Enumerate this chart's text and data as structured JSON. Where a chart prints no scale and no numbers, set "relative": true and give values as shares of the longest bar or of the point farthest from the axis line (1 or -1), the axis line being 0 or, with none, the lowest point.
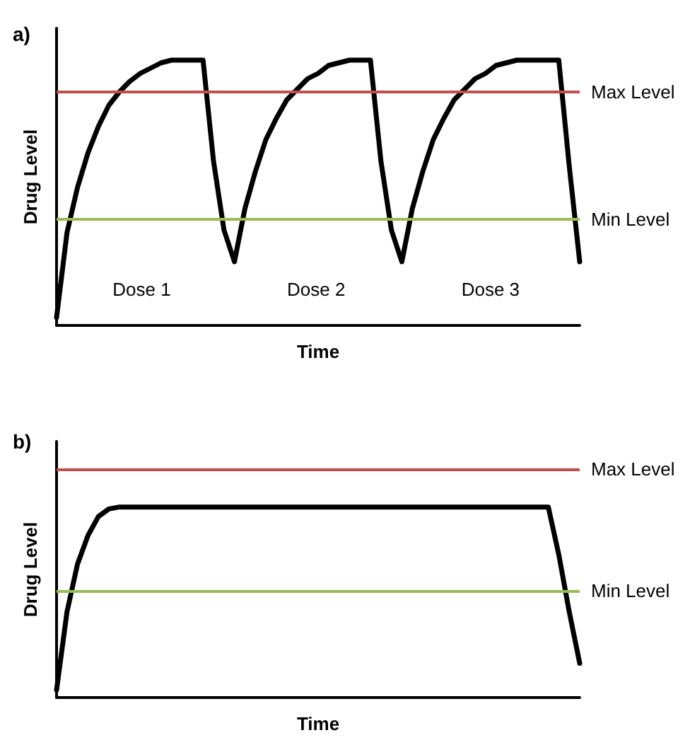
{
  "chart_data": [
    {
      "type": "line",
      "title": "a)",
      "xlabel": "Time",
      "ylabel": "Drug Level",
      "relative": true,
      "grid": false,
      "categories": [
        null,
        null,
        null,
        null,
        null,
        null,
        null,
        null,
        null,
        null,
        null,
        null,
        null,
        null,
        null,
        null,
        null,
        null,
        null,
        null,
        null,
        null,
        null,
        null,
        null,
        null,
        null,
        null,
        null,
        null,
        null,
        null,
        null,
        null,
        null,
        null,
        null,
        null,
        null,
        null,
        null,
        null,
        null,
        null,
        null,
        null,
        null,
        null,
        null,
        null,
        null
      ],
      "series": [
        {
          "color": "#000000",
          "values": [
            0.03,
            0.35,
            0.52,
            0.65,
            0.75,
            0.83,
            0.88,
            0.92,
            0.95,
            0.97,
            0.99,
            1,
            1,
            1,
            1,
            0.62,
            0.36,
            0.24,
            0.44,
            0.58,
            0.7,
            0.78,
            0.85,
            0.89,
            0.93,
            0.95,
            0.98,
            0.99,
            1,
            1,
            1,
            0.62,
            0.36,
            0.24,
            0.44,
            0.58,
            0.7,
            0.78,
            0.85,
            0.89,
            0.93,
            0.95,
            0.98,
            0.99,
            1,
            1,
            1,
            1,
            1,
            0.6,
            0.24
          ]
        }
      ],
      "ref_lines": [
        {
          "axis": "y",
          "value": 0.88,
          "label": "Max Level",
          "color": "#c0504d"
        },
        {
          "axis": "y",
          "value": 0.4,
          "label": "Min Level",
          "color": "#9bbb59"
        }
      ],
      "annotations": [
        "Dose 1",
        "Dose 2",
        "Dose 3"
      ]
    },
    {
      "type": "line",
      "title": "b)",
      "xlabel": "Time",
      "ylabel": "Drug Level",
      "relative": true,
      "grid": false,
      "categories": [
        null,
        null,
        null,
        null,
        null,
        null,
        null,
        null,
        null,
        null,
        null,
        null,
        null,
        null,
        null,
        null,
        null,
        null,
        null,
        null,
        null,
        null,
        null,
        null,
        null,
        null,
        null,
        null,
        null,
        null,
        null,
        null,
        null,
        null,
        null,
        null,
        null,
        null,
        null,
        null,
        null,
        null,
        null,
        null,
        null,
        null,
        null,
        null,
        null,
        null,
        null
      ],
      "series": [
        {
          "color": "#000000",
          "values": [
            0.04,
            0.45,
            0.7,
            0.85,
            0.95,
            0.99,
            1,
            1,
            1,
            1,
            1,
            1,
            1,
            1,
            1,
            1,
            1,
            1,
            1,
            1,
            1,
            1,
            1,
            1,
            1,
            1,
            1,
            1,
            1,
            1,
            1,
            1,
            1,
            1,
            1,
            1,
            1,
            1,
            1,
            1,
            1,
            1,
            1,
            1,
            1,
            1,
            1,
            1,
            0.75,
            0.45,
            0.18
          ]
        }
      ],
      "ref_lines": [
        {
          "axis": "y",
          "value": 1.2,
          "label": "Max Level",
          "color": "#c0504d"
        },
        {
          "axis": "y",
          "value": 0.56,
          "label": "Min Level",
          "color": "#9bbb59"
        }
      ]
    }
  ]
}
